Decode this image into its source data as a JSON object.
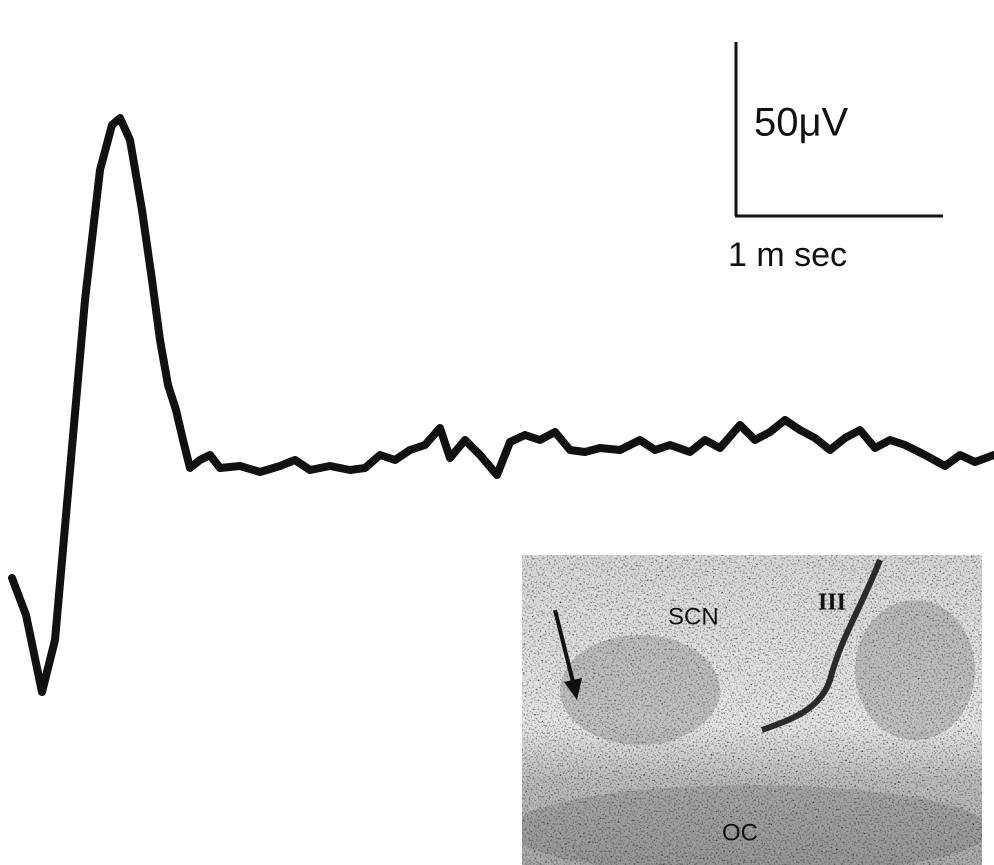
{
  "scale_bar": {
    "amplitude_label": "50μV",
    "time_label": "1 m sec"
  },
  "inset": {
    "labels": {
      "scn": "SCN",
      "iii": "III",
      "oc": "OC"
    }
  }
}
